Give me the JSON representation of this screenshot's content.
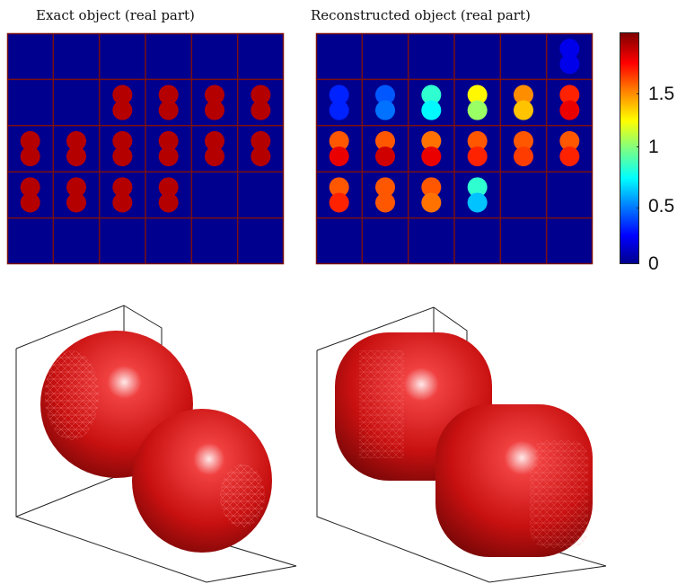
{
  "chart_data": [
    {
      "type": "heatmap",
      "title": "Exact object (real part)",
      "grid": {
        "rows": 5,
        "cols": 6
      },
      "colormap": "jet",
      "clim": [
        0,
        1.9
      ],
      "cells": [
        {
          "row": 1,
          "col": 2,
          "values": [
            1.8,
            1.8
          ]
        },
        {
          "row": 1,
          "col": 3,
          "values": [
            1.8,
            1.8
          ]
        },
        {
          "row": 1,
          "col": 4,
          "values": [
            1.8,
            1.8
          ]
        },
        {
          "row": 1,
          "col": 5,
          "values": [
            1.8,
            1.8
          ]
        },
        {
          "row": 2,
          "col": 0,
          "values": [
            1.8,
            1.8
          ]
        },
        {
          "row": 2,
          "col": 1,
          "values": [
            1.8,
            1.8
          ]
        },
        {
          "row": 2,
          "col": 2,
          "values": [
            1.8,
            1.8
          ]
        },
        {
          "row": 2,
          "col": 3,
          "values": [
            1.8,
            1.8
          ]
        },
        {
          "row": 2,
          "col": 4,
          "values": [
            1.8,
            1.8
          ]
        },
        {
          "row": 2,
          "col": 5,
          "values": [
            1.8,
            1.8
          ]
        },
        {
          "row": 3,
          "col": 0,
          "values": [
            1.8,
            1.8
          ]
        },
        {
          "row": 3,
          "col": 1,
          "values": [
            1.8,
            1.8
          ]
        },
        {
          "row": 3,
          "col": 2,
          "values": [
            1.8,
            1.8
          ]
        },
        {
          "row": 3,
          "col": 3,
          "values": [
            1.8,
            1.8
          ]
        }
      ]
    },
    {
      "type": "heatmap",
      "title": "Reconstructed object (real part)",
      "grid": {
        "rows": 5,
        "cols": 6
      },
      "colormap": "jet",
      "clim": [
        0,
        1.9
      ],
      "cells": [
        {
          "row": 0,
          "col": 5,
          "values": [
            0.2,
            0.2
          ]
        },
        {
          "row": 1,
          "col": 0,
          "values": [
            0.3,
            0.3
          ]
        },
        {
          "row": 1,
          "col": 1,
          "values": [
            0.4,
            0.45
          ]
        },
        {
          "row": 1,
          "col": 2,
          "values": [
            0.8,
            0.7
          ]
        },
        {
          "row": 1,
          "col": 3,
          "values": [
            1.2,
            1.0
          ]
        },
        {
          "row": 1,
          "col": 4,
          "values": [
            1.4,
            1.3
          ]
        },
        {
          "row": 1,
          "col": 5,
          "values": [
            1.6,
            1.7
          ]
        },
        {
          "row": 2,
          "col": 0,
          "values": [
            1.5,
            1.7
          ]
        },
        {
          "row": 2,
          "col": 1,
          "values": [
            1.5,
            1.75
          ]
        },
        {
          "row": 2,
          "col": 2,
          "values": [
            1.45,
            1.7
          ]
        },
        {
          "row": 2,
          "col": 3,
          "values": [
            1.5,
            1.6
          ]
        },
        {
          "row": 2,
          "col": 4,
          "values": [
            1.5,
            1.55
          ]
        },
        {
          "row": 2,
          "col": 5,
          "values": [
            1.5,
            1.6
          ]
        },
        {
          "row": 3,
          "col": 0,
          "values": [
            1.5,
            1.6
          ]
        },
        {
          "row": 3,
          "col": 1,
          "values": [
            1.5,
            1.5
          ]
        },
        {
          "row": 3,
          "col": 2,
          "values": [
            1.5,
            1.45
          ]
        },
        {
          "row": 3,
          "col": 3,
          "values": [
            0.8,
            0.6
          ]
        }
      ]
    },
    {
      "type": "surface",
      "title": "",
      "description_values": {
        "color": "#c81010"
      }
    },
    {
      "type": "surface",
      "title": "",
      "description_values": {
        "color": "#c81010"
      }
    }
  ],
  "colorbar": {
    "ticks": [
      "1.5",
      "1",
      "0.5",
      "0"
    ],
    "tick_values": [
      1.5,
      1,
      0.5,
      0
    ],
    "range": [
      0,
      1.9
    ]
  },
  "colors": {
    "background": "#00008f",
    "grid_line": "#7a1010",
    "object": "#c81010"
  }
}
